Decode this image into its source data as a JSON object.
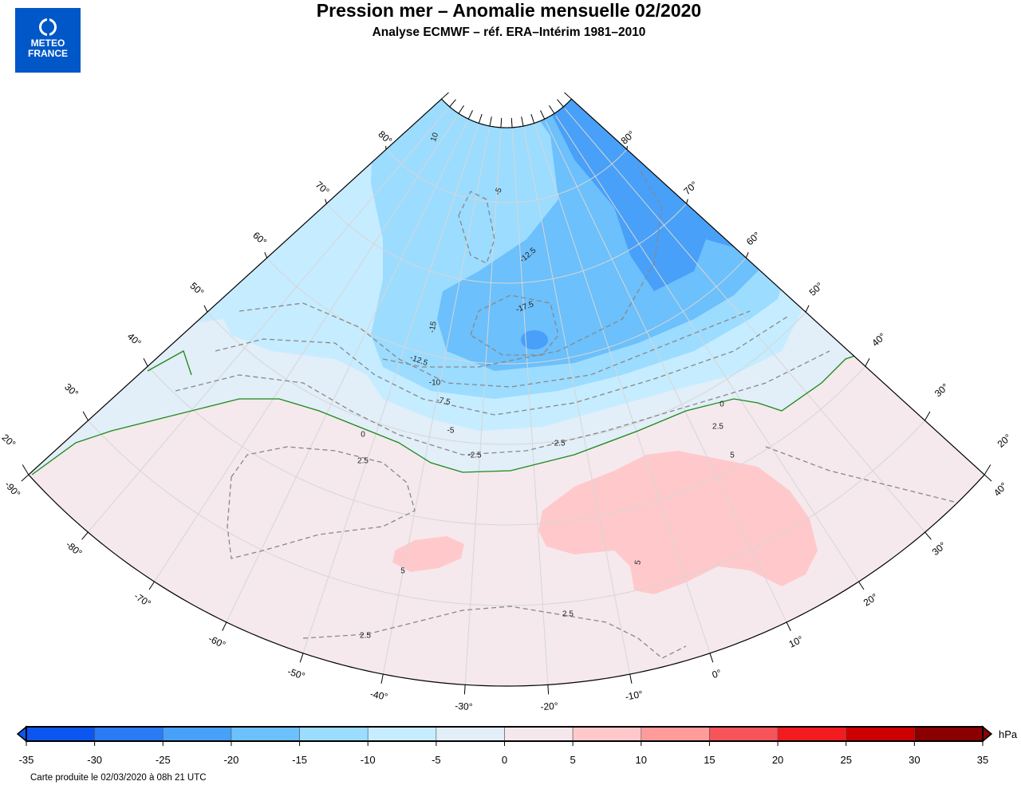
{
  "header": {
    "title": "Pression mer – Anomalie mensuelle 02/2020",
    "subtitle": "Analyse ECMWF – réf. ERA–Intérim 1981–2010"
  },
  "logo": {
    "line1": "METEO",
    "line2": "FRANCE",
    "color": "#0057c8"
  },
  "map": {
    "projection": "conic",
    "land_colors": {
      "background": "#f5e9ed",
      "zero_contour": "#1a8a1a",
      "dashed_contours": "#888888"
    },
    "longitude_labels": [
      "-90°",
      "-80°",
      "-70°",
      "-60°",
      "-50°",
      "-40°",
      "-30°",
      "-20°",
      "-10°",
      "0°",
      "10°",
      "20°",
      "30°",
      "40°"
    ],
    "latitude_labels": [
      "20°",
      "30°",
      "40°",
      "50°",
      "60°",
      "70°",
      "80°"
    ],
    "contour_labels": [
      "10",
      "-15",
      "-12.5",
      "-10",
      "-7.5",
      "-5",
      "0",
      "-12.5",
      "-17.5",
      "0",
      "-2.5",
      "-2.5",
      "2.5",
      "5",
      "5",
      "5",
      "2.5",
      "2.5",
      "2.5",
      "-5"
    ]
  },
  "colorbar": {
    "unit": "hPa",
    "levels": [
      "-35",
      "-30",
      "-25",
      "-20",
      "-15",
      "-10",
      "-5",
      "0",
      "5",
      "10",
      "15",
      "20",
      "25",
      "30",
      "35"
    ],
    "colors": [
      "#0c56f0",
      "#2a7af5",
      "#48a0f8",
      "#6cc0fb",
      "#9cdcff",
      "#c6ecff",
      "#e2eef8",
      "#f5e8ec",
      "#ffc9cc",
      "#ff9b9b",
      "#f7545a",
      "#f21b1f",
      "#cc0000",
      "#8a0000"
    ]
  },
  "footnote": "Carte produite le 02/03/2020 à 08h 21 UTC"
}
